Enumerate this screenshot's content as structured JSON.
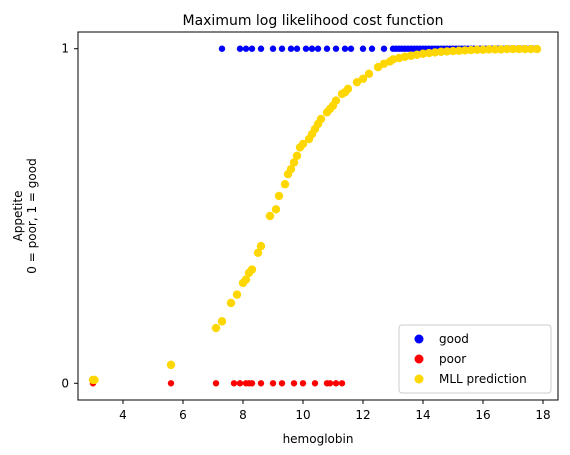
{
  "chart_data": {
    "type": "scatter",
    "title": "Maximum log likelihood cost function",
    "xlabel": "hemoglobin",
    "ylabel_lines": [
      "Appetite",
      "0 = poor, 1 = good"
    ],
    "xlim": [
      2.5,
      18.5
    ],
    "ylim": [
      -0.05,
      1.05
    ],
    "xticks": [
      4,
      6,
      8,
      10,
      12,
      14,
      16,
      18
    ],
    "yticks": [
      0,
      1
    ],
    "legend_position": "bottom-right",
    "series": [
      {
        "name": "good",
        "color": "#0000ff",
        "x": [
          7.3,
          7.9,
          8.1,
          8.3,
          8.6,
          9.0,
          9.3,
          9.6,
          9.8,
          10.1,
          10.3,
          10.5,
          10.8,
          11.1,
          11.4,
          11.6,
          12.0,
          12.3,
          12.7,
          13.0,
          13.1,
          13.2,
          13.3,
          13.4,
          13.5,
          13.6,
          13.7,
          13.8,
          13.9,
          14.0,
          14.1,
          14.2,
          14.3,
          14.4,
          14.5,
          14.6,
          14.7,
          14.8,
          14.9,
          15.0,
          15.1,
          15.2,
          15.3,
          15.4,
          15.5,
          15.6,
          15.7,
          15.8,
          15.9,
          16.0,
          16.1,
          16.2,
          16.3,
          16.4,
          16.5,
          16.6,
          16.7,
          16.8,
          16.9,
          17.0,
          17.1,
          17.2,
          17.3,
          17.4,
          17.5,
          17.6,
          17.7
        ],
        "y": [
          1,
          1,
          1,
          1,
          1,
          1,
          1,
          1,
          1,
          1,
          1,
          1,
          1,
          1,
          1,
          1,
          1,
          1,
          1,
          1,
          1,
          1,
          1,
          1,
          1,
          1,
          1,
          1,
          1,
          1,
          1,
          1,
          1,
          1,
          1,
          1,
          1,
          1,
          1,
          1,
          1,
          1,
          1,
          1,
          1,
          1,
          1,
          1,
          1,
          1,
          1,
          1,
          1,
          1,
          1,
          1,
          1,
          1,
          1,
          1,
          1,
          1,
          1,
          1,
          1,
          1,
          1
        ]
      },
      {
        "name": "poor",
        "color": "#ff0000",
        "x": [
          3.0,
          5.6,
          7.1,
          7.7,
          7.9,
          8.1,
          8.2,
          8.3,
          8.6,
          9.0,
          9.3,
          9.7,
          10.0,
          10.4,
          10.8,
          10.9,
          11.1,
          11.3
        ],
        "y": [
          0,
          0,
          0,
          0,
          0,
          0,
          0,
          0,
          0,
          0,
          0,
          0,
          0,
          0,
          0,
          0,
          0,
          0
        ]
      },
      {
        "name": "MLL prediction",
        "color": "#ffd700",
        "x": [
          3.0,
          3.05,
          5.6,
          7.1,
          7.3,
          7.6,
          7.8,
          8.0,
          8.1,
          8.2,
          8.3,
          8.5,
          8.6,
          8.9,
          9.1,
          9.2,
          9.4,
          9.5,
          9.6,
          9.7,
          9.8,
          9.9,
          10.0,
          10.2,
          10.3,
          10.4,
          10.5,
          10.6,
          10.8,
          10.9,
          11.0,
          11.1,
          11.3,
          11.4,
          11.5,
          11.8,
          12.0,
          12.2,
          12.5,
          12.7,
          12.9,
          13.0,
          13.2,
          13.4,
          13.6,
          13.8,
          14.0,
          14.2,
          14.4,
          14.6,
          14.8,
          15.0,
          15.2,
          15.4,
          15.6,
          15.8,
          16.0,
          16.2,
          16.4,
          16.6,
          16.8,
          17.0,
          17.2,
          17.4,
          17.6,
          17.8
        ],
        "y": [
          0.01,
          0.01,
          0.055,
          0.165,
          0.185,
          0.24,
          0.265,
          0.3,
          0.31,
          0.33,
          0.34,
          0.39,
          0.41,
          0.5,
          0.52,
          0.56,
          0.595,
          0.625,
          0.64,
          0.66,
          0.68,
          0.705,
          0.715,
          0.73,
          0.745,
          0.76,
          0.775,
          0.79,
          0.81,
          0.82,
          0.83,
          0.845,
          0.865,
          0.87,
          0.88,
          0.9,
          0.91,
          0.925,
          0.945,
          0.955,
          0.962,
          0.968,
          0.972,
          0.976,
          0.979,
          0.982,
          0.985,
          0.987,
          0.989,
          0.991,
          0.992,
          0.993,
          0.994,
          0.995,
          0.996,
          0.997,
          0.997,
          0.998,
          0.998,
          0.998,
          0.999,
          0.999,
          0.999,
          0.999,
          0.999,
          0.999
        ]
      }
    ]
  }
}
